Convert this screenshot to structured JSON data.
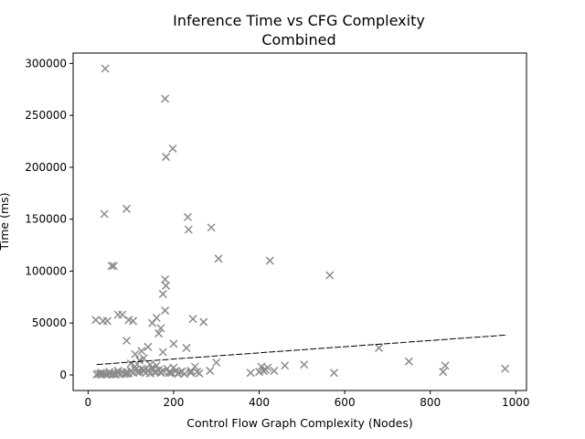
{
  "chart_data": {
    "type": "scatter",
    "title": "Inference Time vs CFG Complexity",
    "subtitle": "Combined",
    "xlabel": "Control Flow Graph Complexity (Nodes)",
    "ylabel": "Time (ms)",
    "xlim": [
      -35,
      1025
    ],
    "ylim": [
      -15000,
      310000
    ],
    "x_ticks": [
      0,
      200,
      400,
      600,
      800,
      1000
    ],
    "y_ticks": [
      0,
      50000,
      100000,
      150000,
      200000,
      250000,
      300000
    ],
    "marker_color": "#8c8c8c",
    "trend_color": "#000000",
    "grid": false,
    "trendline": {
      "x": [
        20,
        980
      ],
      "y": [
        10000,
        38500
      ]
    },
    "x": [
      40,
      180,
      198,
      182,
      90,
      38,
      233,
      288,
      235,
      305,
      425,
      565,
      55,
      60,
      180,
      182,
      175,
      18,
      35,
      45,
      70,
      80,
      95,
      105,
      150,
      160,
      170,
      180,
      245,
      270,
      165,
      140,
      90,
      110,
      125,
      200,
      230,
      130,
      145,
      175,
      680,
      750,
      835,
      975,
      405,
      410,
      420,
      460,
      505,
      435,
      380,
      575,
      830,
      400,
      415,
      300,
      285,
      20,
      25,
      30,
      35,
      40,
      45,
      50,
      55,
      60,
      65,
      70,
      75,
      80,
      85,
      90,
      95,
      100,
      105,
      110,
      115,
      120,
      125,
      130,
      135,
      140,
      145,
      150,
      155,
      160,
      165,
      170,
      175,
      185,
      190,
      195,
      205,
      210,
      215,
      220,
      225,
      240,
      250,
      255,
      260,
      30,
      50,
      70,
      90,
      110,
      130,
      150,
      170,
      190,
      210,
      100,
      120,
      160,
      200,
      240
    ],
    "y": [
      295000,
      266000,
      218000,
      210000,
      160000,
      155000,
      152000,
      142000,
      140000,
      112000,
      110000,
      96000,
      105000,
      105000,
      92000,
      86000,
      78000,
      53000,
      52000,
      52000,
      58000,
      58000,
      53000,
      52000,
      50000,
      55000,
      45000,
      62000,
      54000,
      51000,
      40000,
      27000,
      33000,
      20000,
      23000,
      30000,
      26000,
      16000,
      10000,
      22000,
      26000,
      13000,
      9000,
      6000,
      8000,
      4000,
      7000,
      9000,
      10000,
      4000,
      2000,
      2000,
      3000,
      3000,
      5000,
      12000,
      4000,
      500,
      1000,
      200,
      1500,
      800,
      300,
      1200,
      600,
      900,
      400,
      1800,
      700,
      2500,
      1000,
      3000,
      1500,
      4000,
      2000,
      5000,
      3000,
      2500,
      6000,
      3500,
      2000,
      4500,
      1500,
      7000,
      2500,
      3000,
      5000,
      2000,
      4000,
      6000,
      3000,
      2000,
      4000,
      1500,
      2500,
      3500,
      1000,
      2000,
      8000,
      3000,
      1500,
      2000,
      3000,
      4000,
      1000,
      8000,
      5000,
      6000,
      3000,
      2000,
      1000,
      11000,
      14000,
      9000,
      7000,
      4000
    ]
  }
}
